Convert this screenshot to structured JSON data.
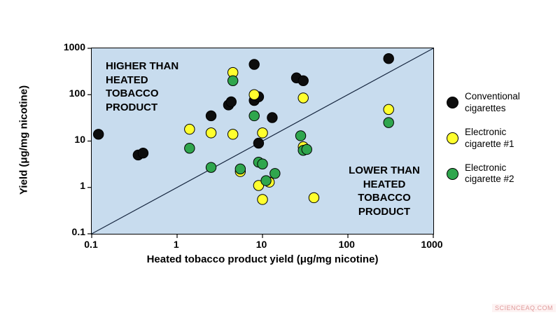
{
  "watermark": "SCIENCEAQ.COM",
  "chart_data": {
    "type": "scatter",
    "title": "",
    "xlabel": "Heated tobacco product yield (μg/mg nicotine)",
    "ylabel": "Yield (μg/mg  nicotine)",
    "xscale": "log",
    "yscale": "log",
    "xlim": [
      0.1,
      1000
    ],
    "ylim": [
      0.1,
      1000
    ],
    "ticks": [
      0.1,
      1,
      10,
      100,
      1000
    ],
    "grid": false,
    "plot_background": "#c8dcee",
    "legend_position": "right",
    "annotations": [
      {
        "text": "HIGHER THAN HEATED TOBACCO PRODUCT",
        "position": "top-left"
      },
      {
        "text": "LOWER THAN HEATED TOBACCO PRODUCT",
        "position": "bottom-right"
      }
    ],
    "reference_line": {
      "from": [
        0.1,
        0.1
      ],
      "to": [
        1000,
        1000
      ],
      "color": "#16263f"
    },
    "series": [
      {
        "name": "Conventional cigarettes",
        "color": "#0d0d0d",
        "points": [
          [
            0.12,
            14
          ],
          [
            0.35,
            5
          ],
          [
            0.4,
            5.5
          ],
          [
            2.5,
            35
          ],
          [
            4,
            60
          ],
          [
            4.3,
            70
          ],
          [
            8,
            450
          ],
          [
            8,
            75
          ],
          [
            9,
            90
          ],
          [
            9,
            9
          ],
          [
            13,
            32
          ],
          [
            25,
            230
          ],
          [
            30,
            200
          ],
          [
            300,
            600
          ]
        ]
      },
      {
        "name": "Electronic cigarette #1",
        "color": "#ffff2e",
        "points": [
          [
            1.4,
            18
          ],
          [
            2.5,
            15
          ],
          [
            4.5,
            300
          ],
          [
            4.5,
            14
          ],
          [
            5.5,
            2.2
          ],
          [
            8,
            100
          ],
          [
            10,
            15
          ],
          [
            9,
            1.1
          ],
          [
            10,
            0.55
          ],
          [
            12,
            1.3
          ],
          [
            30,
            85
          ],
          [
            30,
            7.5
          ],
          [
            40,
            0.6
          ],
          [
            300,
            48
          ]
        ]
      },
      {
        "name": "Electronic cigarette #2",
        "color": "#2fa64d",
        "points": [
          [
            1.4,
            7
          ],
          [
            2.5,
            2.7
          ],
          [
            4.5,
            200
          ],
          [
            5.5,
            2.5
          ],
          [
            8,
            35
          ],
          [
            9,
            3.5
          ],
          [
            10,
            3.2
          ],
          [
            11,
            1.4
          ],
          [
            14,
            2
          ],
          [
            28,
            13
          ],
          [
            30,
            6.3
          ],
          [
            33,
            6.6
          ],
          [
            300,
            25
          ]
        ]
      }
    ]
  }
}
